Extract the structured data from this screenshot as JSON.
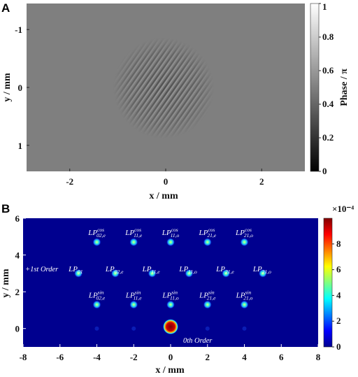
{
  "chart_data": [
    {
      "panel": "A",
      "type": "heatmap",
      "xlabel": "x / mm",
      "ylabel": "y / mm",
      "xticks": [
        "-2",
        "0",
        "2"
      ],
      "yticks": [
        "-1",
        "0",
        "1"
      ],
      "xlim": [
        -2.9,
        2.9
      ],
      "ylim": [
        -1.45,
        1.45
      ],
      "colorbar": {
        "label": "Phase / π",
        "range": [
          0,
          1
        ],
        "ticks": [
          "0",
          "0.2",
          "0.4",
          "0.6",
          "0.8",
          "1"
        ]
      },
      "description": "Phase hologram: uniform mid-grey (≈0.5π) with a circular high-frequency pattern centered at the origin"
    },
    {
      "panel": "B",
      "type": "heatmap",
      "xlabel": "x / mm",
      "ylabel": "y / mm",
      "xticks": [
        "-8",
        "-6",
        "-4",
        "-2",
        "0",
        "2",
        "4",
        "6",
        "8"
      ],
      "yticks": [
        "0",
        "2",
        "4",
        "6"
      ],
      "xlim": [
        -8,
        8
      ],
      "ylim": [
        -1,
        6
      ],
      "colorbar": {
        "multiplier": "×10⁻⁴",
        "range": [
          0,
          10
        ],
        "ticks": [
          "0",
          "2",
          "4",
          "6",
          "8"
        ]
      },
      "zero_order_label": "0th Order",
      "first_order_label": "+1st Order",
      "spots": [
        {
          "x": -4,
          "y": 4.7,
          "mode": "LP",
          "sub": "02,e",
          "sup": "cos"
        },
        {
          "x": -2,
          "y": 4.7,
          "mode": "LP",
          "sub": "11,e",
          "sup": "cos"
        },
        {
          "x": 0,
          "y": 4.7,
          "mode": "LP",
          "sub": "11,o",
          "sup": "cos"
        },
        {
          "x": 2,
          "y": 4.7,
          "mode": "LP",
          "sub": "21,e",
          "sup": "cos"
        },
        {
          "x": 4,
          "y": 4.7,
          "mode": "LP",
          "sub": "21,o",
          "sup": "cos"
        },
        {
          "x": -5,
          "y": 3.0,
          "mode": "LP",
          "sub": "01",
          "sup": ""
        },
        {
          "x": -3,
          "y": 3.0,
          "mode": "LP",
          "sub": "02,e",
          "sup": ""
        },
        {
          "x": -1,
          "y": 3.0,
          "mode": "LP",
          "sub": "11,e",
          "sup": ""
        },
        {
          "x": 1,
          "y": 3.0,
          "mode": "LP",
          "sub": "11,o",
          "sup": ""
        },
        {
          "x": 3,
          "y": 3.0,
          "mode": "LP",
          "sub": "21,e",
          "sup": ""
        },
        {
          "x": 5,
          "y": 3.0,
          "mode": "LP",
          "sub": "21,o",
          "sup": ""
        },
        {
          "x": -4,
          "y": 1.3,
          "mode": "LP",
          "sub": "02,e",
          "sup": "sin"
        },
        {
          "x": -2,
          "y": 1.3,
          "mode": "LP",
          "sub": "11,e",
          "sup": "sin"
        },
        {
          "x": 0,
          "y": 1.3,
          "mode": "LP",
          "sub": "11,o",
          "sup": "sin"
        },
        {
          "x": 2,
          "y": 1.3,
          "mode": "LP",
          "sub": "21,e",
          "sup": "sin"
        },
        {
          "x": 4,
          "y": 1.3,
          "mode": "LP",
          "sub": "21,o",
          "sup": "sin"
        }
      ],
      "zero_order": {
        "x": 0,
        "y": 0.1
      }
    }
  ],
  "panel_labels": [
    "A",
    "B"
  ],
  "colors": {
    "jet_background": "#00008f",
    "grey_background": "#7f7f7f"
  }
}
